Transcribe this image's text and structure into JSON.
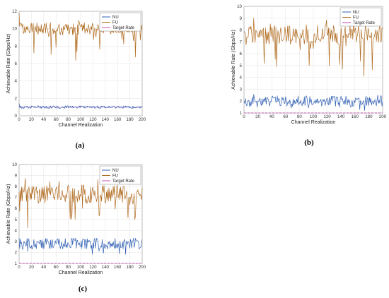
{
  "figure": {
    "panels": [
      {
        "caption": "(a)"
      },
      {
        "caption": "(b)"
      },
      {
        "caption": "(c)"
      }
    ]
  },
  "series_colors": {
    "NU": "#2f5fb3",
    "FU": "#b06a1e",
    "Target Rate": "#c24db0"
  },
  "chart_data": [
    {
      "type": "line",
      "panel": "a",
      "title": "",
      "xlabel": "Channel Realization",
      "ylabel": "Achievable Rate (Gbps/Hz)",
      "xlim": [
        0,
        200
      ],
      "ylim": [
        0,
        12
      ],
      "xticks": [
        0,
        20,
        40,
        60,
        80,
        100,
        120,
        140,
        160,
        180,
        200
      ],
      "yticks": [
        0,
        2,
        4,
        6,
        8,
        10,
        12
      ],
      "grid": true,
      "legend": "top-right",
      "series": [
        {
          "name": "NU",
          "profile": {
            "start": 1.4,
            "mean": 1.0,
            "amp": 0.15,
            "dip_chance": 0.02,
            "dip_depth": 0.2
          }
        },
        {
          "name": "FU",
          "profile": {
            "start": 11.8,
            "mean": 10.0,
            "amp": 0.7,
            "dip_chance": 0.09,
            "dip_depth": 3.5
          }
        },
        {
          "name": "Target Rate",
          "constant": 1.0
        }
      ]
    },
    {
      "type": "line",
      "panel": "b",
      "title": "",
      "xlabel": "Channel Realization",
      "ylabel": "Achievable Rate (Gbps/Hz)",
      "xlim": [
        0,
        200
      ],
      "ylim": [
        1,
        10
      ],
      "xticks": [
        0,
        20,
        40,
        60,
        80,
        100,
        120,
        140,
        160,
        180,
        200
      ],
      "yticks": [
        1,
        2,
        3,
        4,
        5,
        6,
        7,
        8,
        9,
        10
      ],
      "grid": true,
      "legend": "top-right",
      "series": [
        {
          "name": "NU",
          "profile": {
            "start": 2.0,
            "mean": 2.0,
            "amp": 0.45,
            "dip_chance": 0.08,
            "dip_depth": 0.7
          }
        },
        {
          "name": "FU",
          "profile": {
            "start": 7.8,
            "mean": 7.6,
            "amp": 0.8,
            "dip_chance": 0.14,
            "dip_depth": 3.2
          }
        },
        {
          "name": "Target Rate",
          "constant": 1.0
        }
      ]
    },
    {
      "type": "line",
      "panel": "c",
      "title": "",
      "xlabel": "Channel Realization",
      "ylabel": "Achievable Rate (Gbps/Hz)",
      "xlim": [
        0,
        200
      ],
      "ylim": [
        1,
        10
      ],
      "xticks": [
        0,
        20,
        40,
        60,
        80,
        100,
        120,
        140,
        160,
        180,
        200
      ],
      "yticks": [
        1,
        2,
        3,
        4,
        5,
        6,
        7,
        8,
        9,
        10
      ],
      "grid": true,
      "legend": "top-right",
      "series": [
        {
          "name": "NU",
          "profile": {
            "start": 3.3,
            "mean": 2.8,
            "amp": 0.5,
            "dip_chance": 0.07,
            "dip_depth": 1.0
          }
        },
        {
          "name": "FU",
          "profile": {
            "start": 7.5,
            "mean": 7.3,
            "amp": 0.85,
            "dip_chance": 0.12,
            "dip_depth": 2.8
          }
        },
        {
          "name": "Target Rate",
          "constant": 1.0
        }
      ]
    }
  ]
}
